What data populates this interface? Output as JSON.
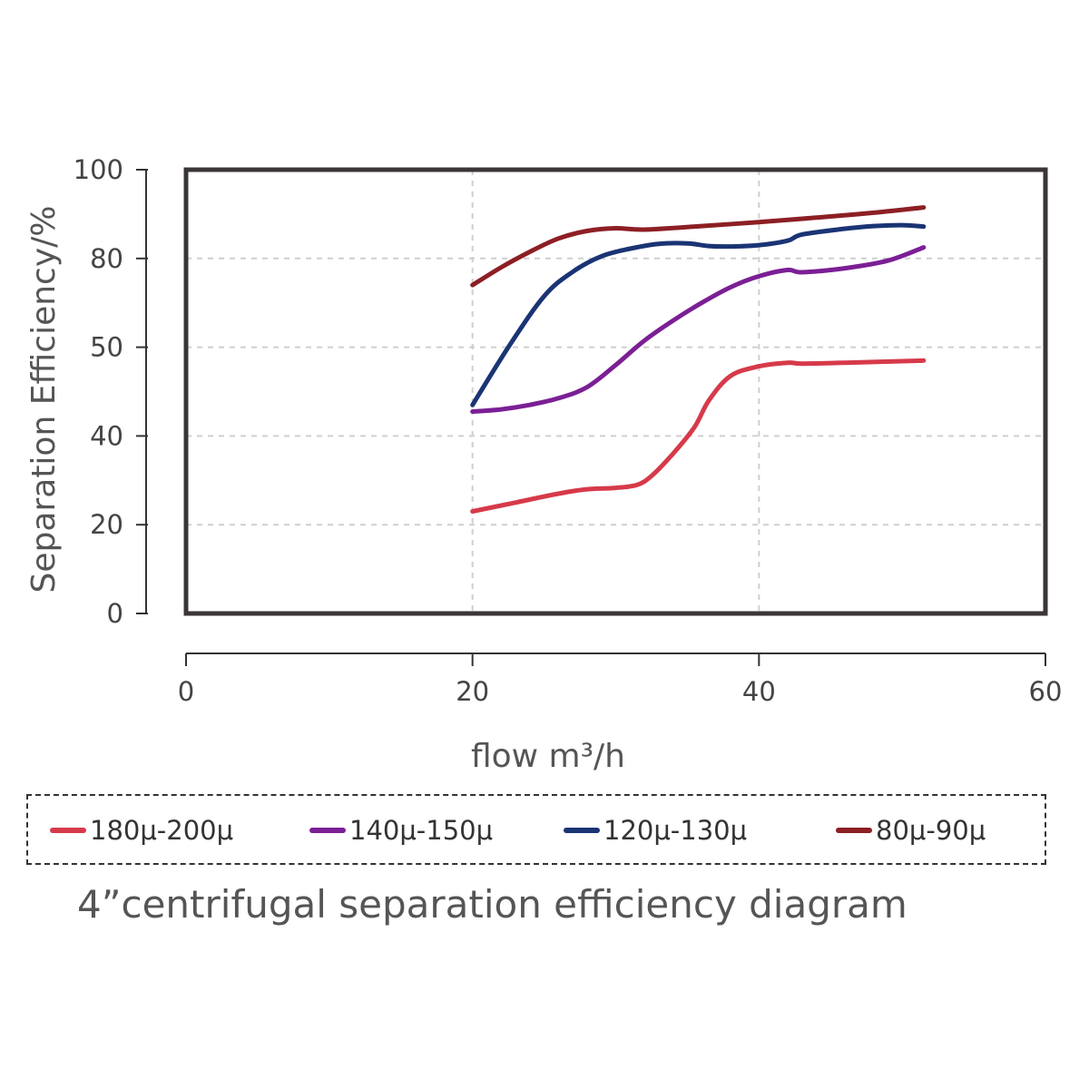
{
  "chart_data": {
    "type": "line",
    "title": "4”centrifugal separation efficiency diagram",
    "xlabel": "flow m³/h",
    "ylabel": "Separation Efficiency/%",
    "xlim": [
      0,
      60
    ],
    "ylim": [
      0,
      100
    ],
    "x_ticks": [
      "0",
      "20",
      "40",
      "60"
    ],
    "y_ticks": [
      "0",
      "20",
      "40",
      "50",
      "80",
      "100"
    ],
    "grid": true,
    "legend_position": "bottom",
    "series": [
      {
        "name": "180μ-200μ",
        "color": "#d63a4a",
        "x": [
          20,
          23,
          26,
          28,
          30,
          31.5,
          32.5,
          34,
          35.5,
          36.5,
          38,
          40,
          42,
          43,
          46,
          51.5
        ],
        "y": [
          23,
          25,
          27,
          28,
          28.3,
          29,
          31,
          36,
          42,
          48,
          53.5,
          55.7,
          56.5,
          56.3,
          56.5,
          57
        ]
      },
      {
        "name": "140μ-150μ",
        "color": "#7b1f95",
        "x": [
          20,
          22,
          24,
          26,
          28,
          30,
          32,
          34,
          36,
          38,
          40,
          42,
          43,
          46,
          49,
          51.5
        ],
        "y": [
          45.5,
          46,
          47,
          48.5,
          51,
          56,
          61.5,
          66,
          70,
          73.5,
          76,
          77.4,
          76.9,
          77.8,
          79.5,
          82.5
        ]
      },
      {
        "name": "120μ-130μ",
        "color": "#1a3474",
        "x": [
          20,
          22.5,
          25,
          27,
          29,
          31,
          33,
          35,
          36.5,
          38,
          40,
          42,
          43,
          46,
          48,
          50,
          51.5
        ],
        "y": [
          47,
          60,
          71.5,
          77,
          80.5,
          82.2,
          83.3,
          83.4,
          82.8,
          82.7,
          83,
          84,
          85.4,
          86.7,
          87.3,
          87.5,
          87.2
        ]
      },
      {
        "name": "80μ-90μ",
        "color": "#8c1f24",
        "x": [
          20,
          22,
          24,
          26,
          28,
          30,
          32,
          36,
          40,
          44,
          48,
          51.5
        ],
        "y": [
          74,
          78,
          81.5,
          84.5,
          86.2,
          86.8,
          86.5,
          87.3,
          88.2,
          89.2,
          90.3,
          91.5
        ]
      }
    ]
  }
}
